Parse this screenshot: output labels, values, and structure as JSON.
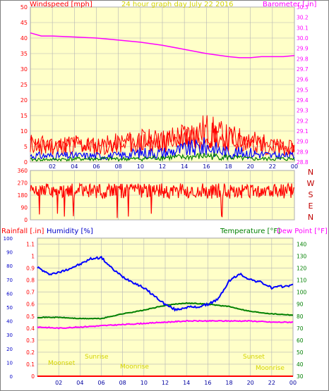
{
  "header": {
    "left": "Windspeed [mph]",
    "center": "24 hour graph day   July 22 2016",
    "right": "Barometer [.in]"
  },
  "footer_labels": {
    "moonset": "Moonset",
    "sunrise": "Sunrise",
    "moonrise": "Moonrise",
    "sunset": "Sunset",
    "moon_rise_right": "Moonrise"
  },
  "colors": {
    "background": "#ffffc8",
    "frame": "#a0a0a0",
    "grid": "#b4b4b4",
    "wind": "#ff0000",
    "gust_blue": "#0000ff",
    "green": "#008000",
    "magenta": "#ff00ff",
    "yellow_text": "#d4d400"
  },
  "chart_data": [
    {
      "type": "line",
      "title": "24 hour graph day   July 22 2016",
      "ylabel_left": "Windspeed [mph]",
      "ylabel_right": "Barometer [.in]",
      "x_ticks": [
        "02",
        "04",
        "06",
        "08",
        "10",
        "12",
        "14",
        "16",
        "18",
        "20",
        "22",
        "00"
      ],
      "ylim_left": [
        0,
        50
      ],
      "yticks_left": [
        0,
        5,
        10,
        15,
        20,
        25,
        30,
        35,
        40,
        45,
        50
      ],
      "ylim_right": [
        28.8,
        30.3
      ],
      "yticks_right": [
        28.8,
        28.9,
        29.0,
        29.1,
        29.2,
        29.3,
        29.4,
        29.5,
        29.6,
        29.7,
        29.8,
        29.9,
        30.0,
        30.1,
        30.2,
        30.3
      ],
      "barometer": {
        "x": [
          0,
          1,
          2,
          4,
          6,
          8,
          10,
          12,
          14,
          16,
          18,
          19,
          20,
          21,
          22,
          23,
          24
        ],
        "y": [
          30.05,
          30.02,
          30.02,
          30.01,
          30.0,
          29.98,
          29.96,
          29.93,
          29.89,
          29.85,
          29.82,
          29.81,
          29.81,
          29.82,
          29.82,
          29.82,
          29.83
        ]
      },
      "wind_gust_envelope": {
        "x": [
          0,
          2,
          4,
          6,
          8,
          10,
          12,
          14,
          16,
          18,
          20,
          22,
          24
        ],
        "y": [
          7,
          6,
          7,
          6,
          7,
          8,
          8,
          10,
          12,
          9,
          8,
          6,
          5
        ]
      },
      "wind_avg_envelope": {
        "x": [
          0,
          2,
          4,
          6,
          8,
          10,
          12,
          14,
          16,
          18,
          20,
          22,
          24
        ],
        "y": [
          2,
          2,
          2,
          2,
          2,
          3,
          3,
          4,
          5,
          3,
          3,
          2,
          2
        ]
      },
      "wind_low_envelope": {
        "x": [
          0,
          2,
          4,
          6,
          8,
          10,
          12,
          14,
          16,
          18,
          20,
          22,
          24
        ],
        "y": [
          0.8,
          0.8,
          1,
          1,
          1,
          1,
          1.5,
          1.5,
          2,
          1.5,
          1,
          1,
          1
        ]
      }
    },
    {
      "type": "scatter",
      "ylim": [
        0,
        360
      ],
      "yticks": [
        0,
        90,
        180,
        270,
        360
      ],
      "right_labels": [
        "N",
        "W",
        "S",
        "E",
        "N"
      ],
      "x_range": [
        0,
        24
      ],
      "mean_direction": 210
    },
    {
      "type": "line",
      "ylabel_rain": "Rainfall [.in]",
      "ylabel_humidity": "Humidity [%]",
      "ylabel_temperature": "Temperature [°F]",
      "ylabel_dewpoint": "Dew Point [°F]",
      "x_ticks": [
        "02",
        "04",
        "06",
        "08",
        "10",
        "12",
        "14",
        "16",
        "18",
        "20",
        "22",
        "00"
      ],
      "humidity_ticks": [
        0,
        10,
        20,
        30,
        40,
        50,
        60,
        70,
        80,
        90,
        100
      ],
      "rain_ticks": [
        0,
        0.1,
        0.2,
        0.3,
        0.4,
        0.5,
        0.6,
        0.7,
        0.8,
        0.9,
        1,
        1.1
      ],
      "temp_ticks": [
        30,
        40,
        50,
        60,
        70,
        80,
        90,
        100,
        110,
        120,
        130,
        140
      ],
      "ylim_humidity": [
        0,
        100
      ],
      "ylim_rain": [
        0,
        1.15
      ],
      "ylim_temp": [
        30,
        145
      ],
      "humidity": {
        "x": [
          0,
          1,
          2,
          3,
          4,
          5,
          6,
          7,
          8,
          9,
          10,
          11,
          12,
          13,
          14,
          15,
          16,
          17,
          18,
          19,
          20,
          21,
          22,
          23,
          24
        ],
        "y": [
          79,
          74,
          75,
          78,
          81,
          85,
          86,
          78,
          72,
          68,
          64,
          58,
          52,
          48,
          50,
          50,
          52,
          56,
          69,
          74,
          70,
          68,
          64,
          65,
          66
        ]
      },
      "temperature": {
        "x": [
          0,
          2,
          4,
          6,
          8,
          10,
          12,
          14,
          16,
          18,
          20,
          22,
          24
        ],
        "y": [
          79,
          79,
          78,
          78,
          82,
          85,
          89,
          91,
          90,
          88,
          84,
          82,
          81
        ]
      },
      "dewpoint": {
        "x": [
          0,
          2,
          4,
          6,
          8,
          10,
          12,
          14,
          16,
          18,
          20,
          22,
          24
        ],
        "y": [
          71,
          70,
          71,
          72,
          73,
          74,
          75,
          76,
          76,
          76,
          76,
          75,
          75
        ]
      },
      "rainfall": {
        "x": [
          0,
          24
        ],
        "y": [
          0,
          0
        ]
      }
    }
  ]
}
